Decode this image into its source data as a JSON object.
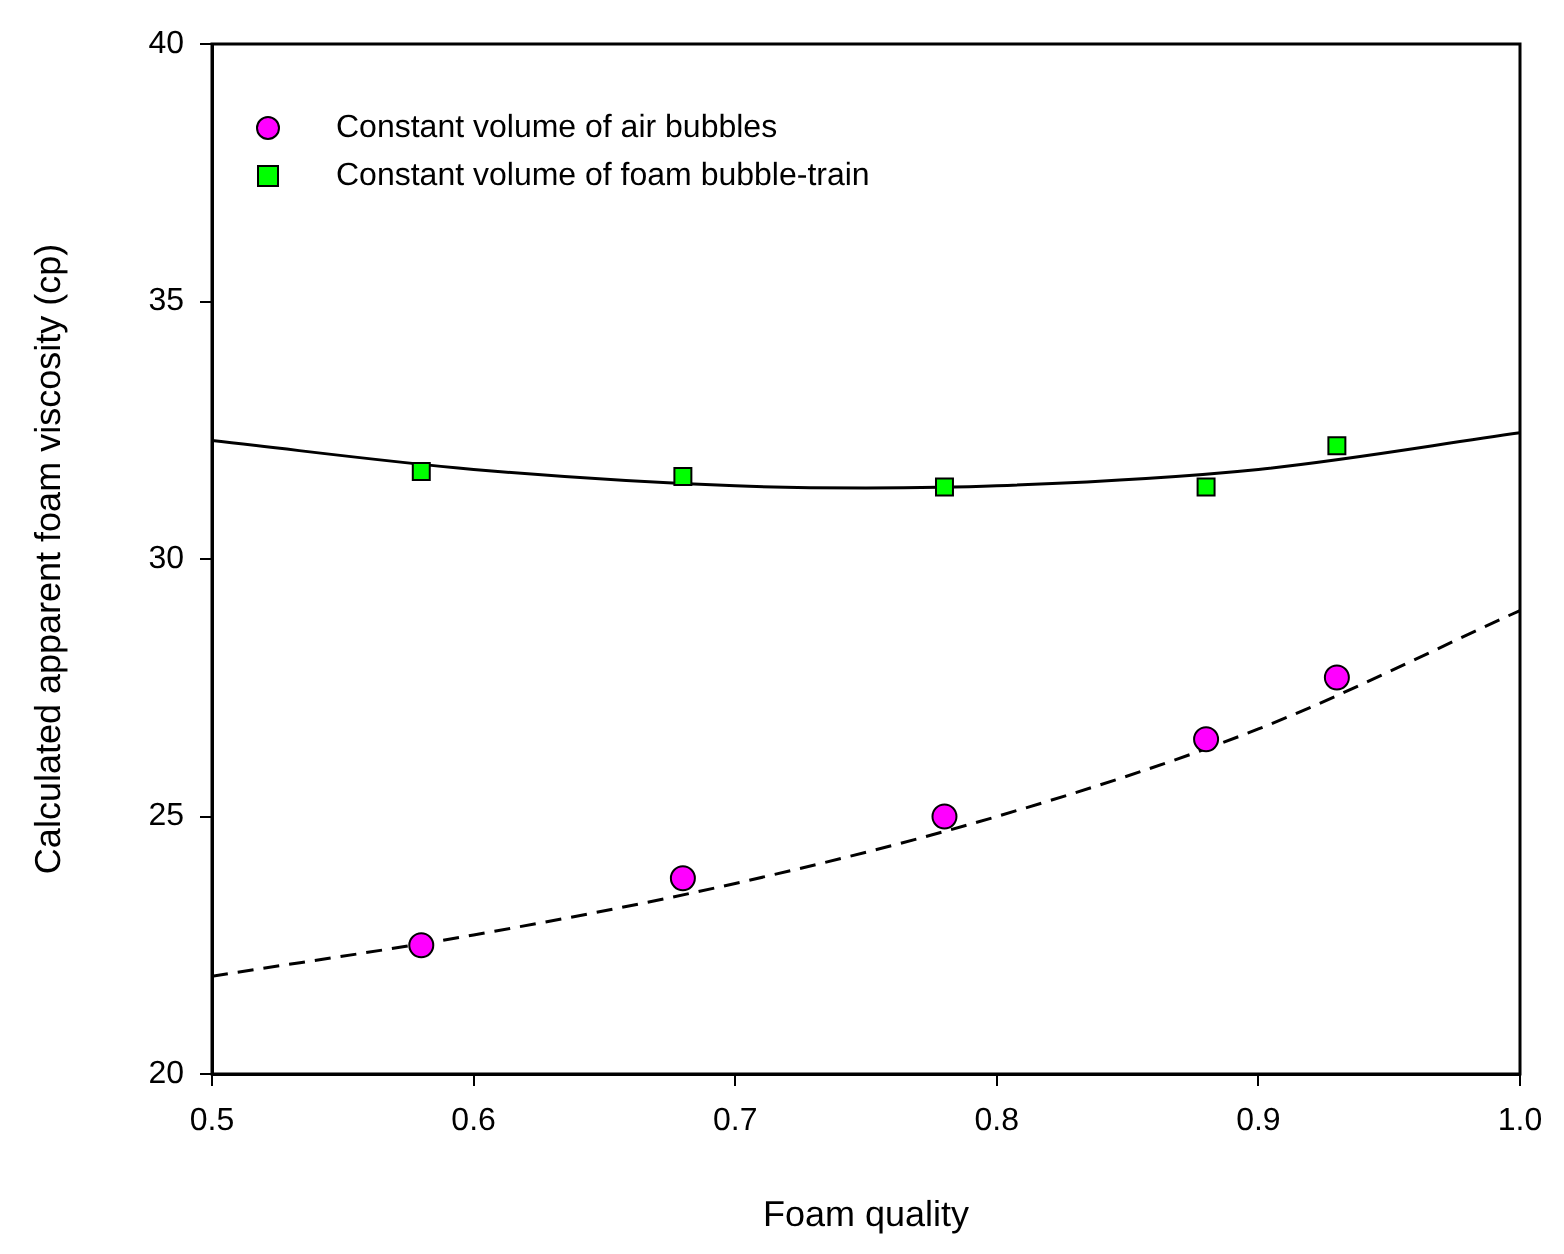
{
  "chart_data": {
    "type": "scatter",
    "xlabel": "Foam quality",
    "ylabel": "Calculated apparent foam viscosity (cp)",
    "xlim": [
      0.5,
      1.0
    ],
    "xticks": [
      0.5,
      0.6,
      0.7,
      0.8,
      0.9,
      {
        "value": 1,
        "label": "1.0"
      }
    ],
    "ylim": [
      20,
      40
    ],
    "yticks": [
      20,
      25,
      30,
      35,
      40
    ],
    "grid": false,
    "legend": "top left",
    "series": [
      {
        "name": "Constant volume of air bubbles",
        "marker": "circle",
        "color": "#ff00ff",
        "x": [
          0.58,
          0.68,
          0.78,
          0.88,
          0.93
        ],
        "values": [
          22.5,
          23.8,
          25.0,
          26.5,
          27.7
        ]
      },
      {
        "name": "Constant volume of foam bubble-train",
        "marker": "square",
        "color": "#00ff00",
        "x": [
          0.58,
          0.68,
          0.78,
          0.88,
          0.93
        ],
        "values": [
          31.7,
          31.6,
          31.4,
          31.4,
          32.2
        ]
      },
      {
        "type": "line",
        "marker": "none",
        "line_style": "dashed",
        "color": "#000000",
        "x": [
          0.5,
          0.6,
          0.7,
          0.8,
          0.9,
          1.0
        ],
        "values": [
          21.9,
          22.7,
          23.7,
          25.0,
          26.7,
          29.0
        ]
      },
      {
        "type": "line",
        "marker": "none",
        "line_style": "solid",
        "color": "#000000",
        "x": [
          0.5,
          0.6,
          0.7,
          0.75,
          0.8,
          0.9,
          1.0
        ],
        "values": [
          32.3,
          31.74,
          31.42,
          31.38,
          31.42,
          31.74,
          32.45
        ]
      }
    ]
  }
}
